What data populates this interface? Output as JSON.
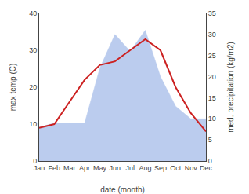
{
  "chart_data": {
    "type": "line",
    "xlabel": "date (month)",
    "ylabel": "max temp (C)",
    "y2label": "med. precipitation (kg/m2)",
    "categories": [
      "Jan",
      "Feb",
      "Mar",
      "Apr",
      "May",
      "Jun",
      "Jul",
      "Aug",
      "Sep",
      "Oct",
      "Nov",
      "Dec"
    ],
    "series": [
      {
        "type": "area",
        "axis": "y2",
        "color": "#bbccee",
        "values": [
          8,
          9,
          9,
          9,
          22,
          30,
          26,
          31,
          20,
          13,
          10,
          10
        ]
      },
      {
        "type": "line",
        "color": "#cc2222",
        "values": [
          9,
          10,
          16,
          22,
          26,
          27,
          30,
          33,
          30,
          20,
          13,
          8
        ]
      }
    ],
    "ylim": [
      0,
      40
    ],
    "yticks": [
      0,
      10,
      20,
      30,
      40
    ],
    "y2lim": [
      0,
      35
    ],
    "y2ticks": [
      0,
      5,
      10,
      15,
      20,
      25,
      30,
      35
    ],
    "grid": false
  }
}
